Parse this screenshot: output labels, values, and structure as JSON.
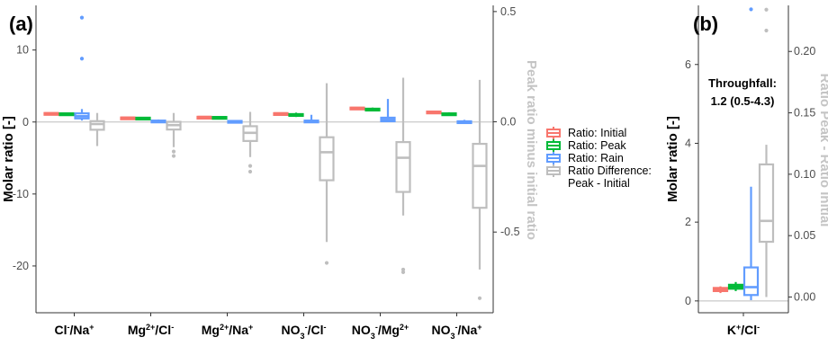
{
  "colors": {
    "initial": "#f8766d",
    "peak": "#00ba38",
    "rain": "#619cff",
    "difference": "#bebebe",
    "zero_line": "#bdbdbd"
  },
  "chart_data": [
    {
      "panel": "(a)",
      "type": "box",
      "ylabel": "Molar ratio [-]",
      "y2label": "Peak ratio minus initial ratio",
      "ylim": [
        -26.5,
        16.2
      ],
      "y2lim": [
        -0.866,
        0.528
      ],
      "yticks": [
        -20,
        -10,
        0,
        10
      ],
      "y2ticks": [
        -0.5,
        0.0,
        0.5
      ],
      "y2tick_labels": [
        "-0.5",
        "0.0",
        "0.5"
      ],
      "categories": [
        {
          "label_html": "Cl<tspan baseline-shift=\"super\" class=\"sup\">-</tspan>/Na<tspan baseline-shift=\"super\" class=\"sup\">+</tspan>"
        },
        {
          "label_html": "Mg<tspan baseline-shift=\"super\" class=\"sup\">2+</tspan>/Cl<tspan baseline-shift=\"super\" class=\"sup\">-</tspan>"
        },
        {
          "label_html": "Mg<tspan baseline-shift=\"super\" class=\"sup\">2+</tspan>/Na<tspan baseline-shift=\"super\" class=\"sup\">+</tspan>"
        },
        {
          "label_html": "NO<tspan baseline-shift=\"sub\" class=\"sup\">3</tspan><tspan baseline-shift=\"super\" class=\"sup\">-</tspan>/Cl<tspan baseline-shift=\"super\" class=\"sup\">-</tspan>"
        },
        {
          "label_html": "NO<tspan baseline-shift=\"sub\" class=\"sup\">3</tspan><tspan baseline-shift=\"super\" class=\"sup\">-</tspan>/Mg<tspan baseline-shift=\"super\" class=\"sup\">2+</tspan>"
        },
        {
          "label_html": "NO<tspan baseline-shift=\"sub\" class=\"sup\">3</tspan><tspan baseline-shift=\"super\" class=\"sup\">-</tspan>/Na<tspan baseline-shift=\"super\" class=\"sup\">+</tspan>"
        }
      ],
      "series": [
        {
          "name": "Ratio: Initial",
          "color_key": "initial",
          "axis": "left",
          "boxes": [
            {
              "min": 1.1,
              "q1": 1.15,
              "med": 1.2,
              "q3": 1.25,
              "max": 1.3,
              "out": []
            },
            {
              "min": 0.5,
              "q1": 0.55,
              "med": 0.6,
              "q3": 0.63,
              "max": 0.67,
              "out": []
            },
            {
              "min": 0.6,
              "q1": 0.65,
              "med": 0.7,
              "q3": 0.73,
              "max": 0.78,
              "out": []
            },
            {
              "min": 1.1,
              "q1": 1.15,
              "med": 1.2,
              "q3": 1.23,
              "max": 1.28,
              "out": []
            },
            {
              "min": 1.85,
              "q1": 1.9,
              "med": 1.95,
              "q3": 2.0,
              "max": 2.05,
              "out": []
            },
            {
              "min": 1.3,
              "q1": 1.35,
              "med": 1.4,
              "q3": 1.45,
              "max": 1.5,
              "out": []
            }
          ]
        },
        {
          "name": "Ratio: Peak",
          "color_key": "peak",
          "axis": "left",
          "boxes": [
            {
              "min": 1.05,
              "q1": 1.1,
              "med": 1.15,
              "q3": 1.2,
              "max": 1.25,
              "out": []
            },
            {
              "min": 0.45,
              "q1": 0.5,
              "med": 0.55,
              "q3": 0.6,
              "max": 0.65,
              "out": []
            },
            {
              "min": 0.55,
              "q1": 0.6,
              "med": 0.65,
              "q3": 0.7,
              "max": 0.75,
              "out": []
            },
            {
              "min": 0.7,
              "q1": 0.85,
              "med": 0.95,
              "q3": 1.1,
              "max": 1.3,
              "out": []
            },
            {
              "min": 1.5,
              "q1": 1.65,
              "med": 1.75,
              "q3": 1.85,
              "max": 2.0,
              "out": []
            },
            {
              "min": 0.9,
              "q1": 1.0,
              "med": 1.1,
              "q3": 1.2,
              "max": 1.35,
              "out": []
            }
          ]
        },
        {
          "name": "Ratio: Rain",
          "color_key": "rain",
          "axis": "left",
          "boxes": [
            {
              "min": 0.2,
              "q1": 0.5,
              "med": 0.8,
              "q3": 1.2,
              "max": 1.8,
              "out": [
                8.8,
                14.5
              ]
            },
            {
              "min": 0.0,
              "q1": 0.05,
              "med": 0.1,
              "q3": 0.2,
              "max": 0.35,
              "out": []
            },
            {
              "min": 0.0,
              "q1": 0.05,
              "med": 0.1,
              "q3": 0.15,
              "max": 0.25,
              "out": []
            },
            {
              "min": -0.1,
              "q1": 0.0,
              "med": 0.05,
              "q3": 0.2,
              "max": 1.0,
              "out": []
            },
            {
              "min": 0.0,
              "q1": 0.1,
              "med": 0.3,
              "q3": 0.6,
              "max": 3.2,
              "out": []
            },
            {
              "min": -0.05,
              "q1": 0.0,
              "med": 0.05,
              "q3": 0.1,
              "max": 0.3,
              "out": []
            }
          ]
        },
        {
          "name": "Ratio Difference:\nPeak - Initial",
          "color_key": "difference",
          "axis": "right",
          "boxes": [
            {
              "min": -0.11,
              "q1": -0.036,
              "med": -0.01,
              "q3": 0.003,
              "max": 0.04,
              "out": []
            },
            {
              "min": -0.115,
              "q1": -0.035,
              "med": -0.015,
              "q3": 0.0,
              "max": 0.04,
              "out": [
                -0.155,
                -0.135
              ]
            },
            {
              "min": -0.16,
              "q1": -0.087,
              "med": -0.05,
              "q3": -0.02,
              "max": 0.045,
              "out": [
                -0.226,
                -0.2
              ]
            },
            {
              "min": -0.545,
              "q1": -0.265,
              "med": -0.138,
              "q3": -0.07,
              "max": 0.175,
              "out": [
                -0.64
              ]
            },
            {
              "min": -0.425,
              "q1": -0.318,
              "med": -0.163,
              "q3": -0.092,
              "max": 0.2,
              "out": [
                -0.682,
                -0.67
              ]
            },
            {
              "min": -0.67,
              "q1": -0.39,
              "med": -0.2,
              "q3": -0.1,
              "max": 0.19,
              "out": [
                -0.8
              ]
            }
          ]
        }
      ]
    },
    {
      "panel": "(b)",
      "type": "box",
      "ylabel": "Molar ratio [-]",
      "y2label": "Ratio Peak - Ratio Initial",
      "ylim": [
        -0.3,
        7.5
      ],
      "y2lim": [
        -0.0128,
        0.2375
      ],
      "yticks": [
        0,
        2,
        4,
        6
      ],
      "y2ticks": [
        0.0,
        0.05,
        0.1,
        0.15,
        0.2
      ],
      "y2tick_labels": [
        "0.00",
        "0.05",
        "0.10",
        "0.15",
        "0.20"
      ],
      "categories": [
        {
          "label_html": "K<tspan baseline-shift=\"super\" class=\"sup\">+</tspan>/Cl<tspan baseline-shift=\"super\" class=\"sup\">-</tspan>"
        }
      ],
      "annotation": [
        "Throughfall:",
        "1.2 (0.5-4.3)"
      ],
      "series": [
        {
          "name": "Ratio: Initial",
          "color_key": "initial",
          "axis": "left",
          "boxes": [
            {
              "min": 0.2,
              "q1": 0.25,
              "med": 0.3,
              "q3": 0.33,
              "max": 0.37,
              "out": []
            }
          ]
        },
        {
          "name": "Ratio: Peak",
          "color_key": "peak",
          "axis": "left",
          "boxes": [
            {
              "min": 0.25,
              "q1": 0.31,
              "med": 0.36,
              "q3": 0.41,
              "max": 0.48,
              "out": []
            }
          ]
        },
        {
          "name": "Ratio: Rain",
          "color_key": "rain",
          "axis": "left",
          "boxes": [
            {
              "min": 0.02,
              "q1": 0.15,
              "med": 0.35,
              "q3": 0.85,
              "max": 2.9,
              "out": [
                7.4
              ]
            }
          ]
        },
        {
          "name": "Ratio Difference:\nPeak - Initial",
          "color_key": "difference",
          "axis": "right",
          "boxes": [
            {
              "min": 0.0,
              "q1": 0.045,
              "med": 0.062,
              "q3": 0.108,
              "max": 0.124,
              "out": [
                0.217,
                0.234
              ]
            }
          ]
        }
      ]
    }
  ]
}
